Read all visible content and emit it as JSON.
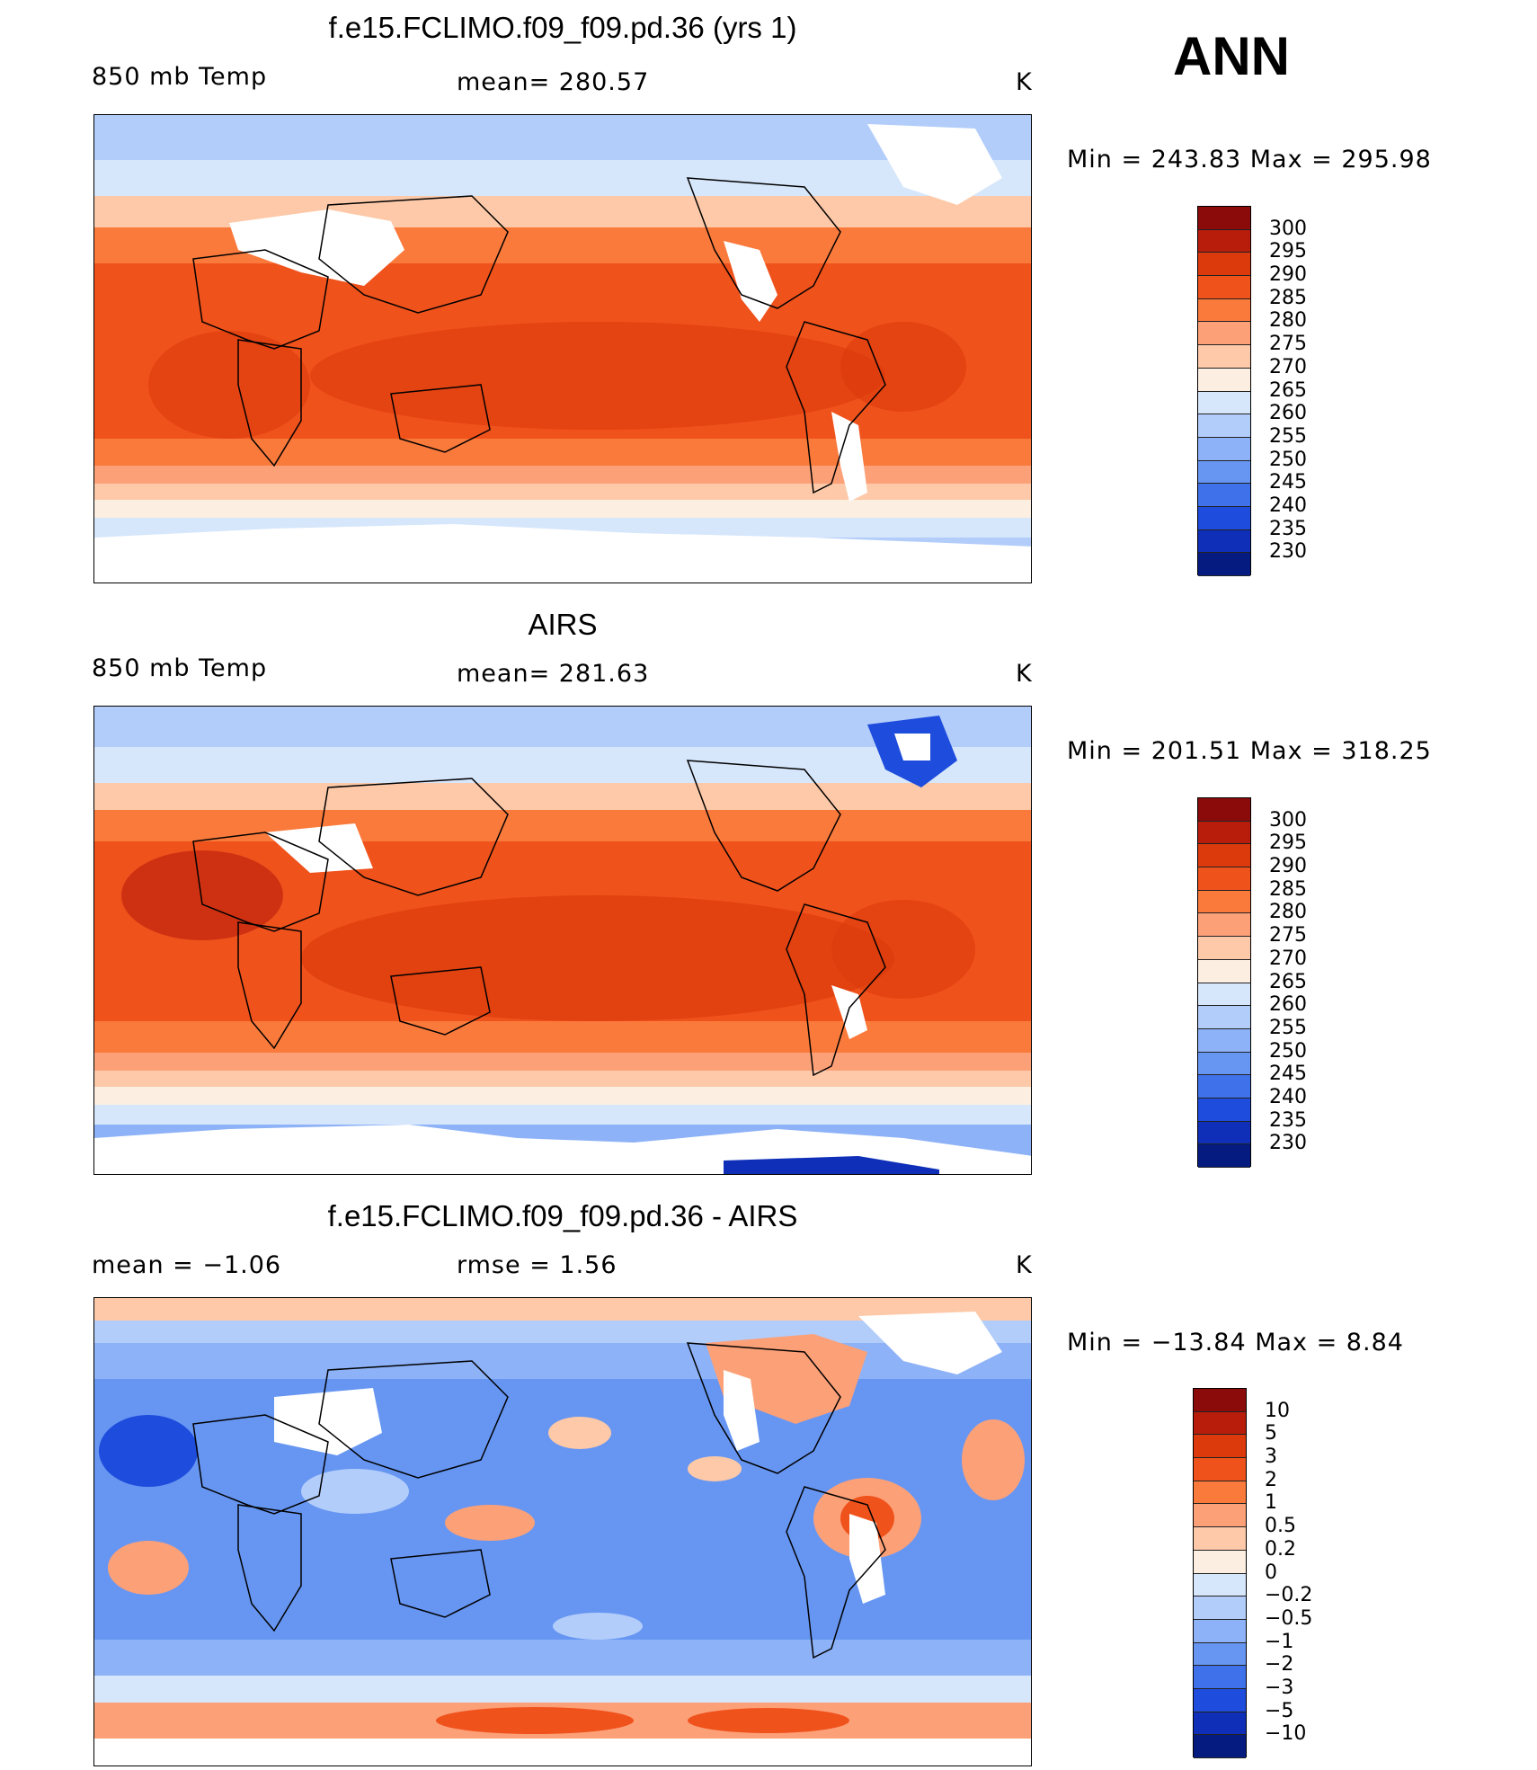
{
  "season": "ANN",
  "panels": [
    {
      "title": "f.e15.FCLIMO.f09_f09.pd.36 (yrs 1)",
      "left_label": "850 mb Temp",
      "center_label": "mean= 280.57",
      "units": "K",
      "minmax": "Min = 243.83 Max = 295.98",
      "kind": "abs"
    },
    {
      "title": "AIRS",
      "left_label": "850 mb Temp",
      "center_label": "mean= 281.63",
      "units": "K",
      "minmax": "Min = 201.51 Max = 318.25",
      "kind": "abs"
    },
    {
      "title": "f.e15.FCLIMO.f09_f09.pd.36 - AIRS",
      "left_label": "mean =   −1.06",
      "center_label": "rmse =    1.56",
      "units": "K",
      "minmax": "Min = −13.84 Max =    8.84",
      "kind": "diff"
    }
  ],
  "colorbars": {
    "abs": {
      "labels": [
        "300",
        "295",
        "290",
        "285",
        "280",
        "275",
        "270",
        "265",
        "260",
        "255",
        "250",
        "245",
        "240",
        "235",
        "230"
      ],
      "colors": [
        "#8b0b0b",
        "#b81d0c",
        "#dc3a0c",
        "#f0521c",
        "#fa7a3c",
        "#fca078",
        "#fdc9a8",
        "#fdeee2",
        "#d6e6fb",
        "#b2cdfa",
        "#8db2f7",
        "#6796f2",
        "#3f72ea",
        "#1e4cdc",
        "#0f2fb8",
        "#061b80"
      ]
    },
    "diff": {
      "labels": [
        "10",
        "5",
        "3",
        "2",
        "1",
        "0.5",
        "0.2",
        "0",
        "−0.2",
        "−0.5",
        "−1",
        "−2",
        "−3",
        "−5",
        "−10"
      ],
      "colors": [
        "#8b0b0b",
        "#b81d0c",
        "#dc3a0c",
        "#f0521c",
        "#fa7a3c",
        "#fca078",
        "#fdc9a8",
        "#fdeee2",
        "#d6e6fb",
        "#b2cdfa",
        "#8db2f7",
        "#6796f2",
        "#3f72ea",
        "#1e4cdc",
        "#0f2fb8",
        "#061b80"
      ]
    }
  }
}
